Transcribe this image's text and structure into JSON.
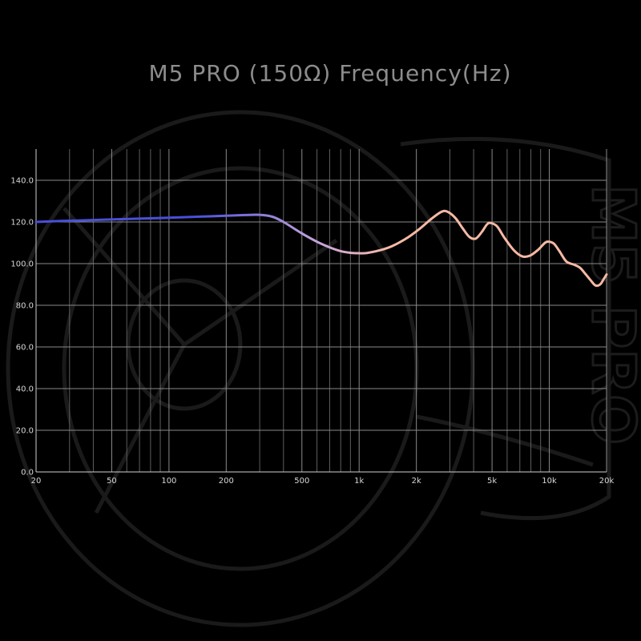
{
  "chart_data": {
    "type": "line",
    "title": "M5 PRO (150Ω) Frequency(Hz)",
    "x_scale": "log",
    "xlim": [
      20,
      20000
    ],
    "ylim": [
      0,
      155
    ],
    "x_ticks": [
      {
        "value": 20,
        "label": "20"
      },
      {
        "value": 50,
        "label": "50"
      },
      {
        "value": 100,
        "label": "100"
      },
      {
        "value": 200,
        "label": "200"
      },
      {
        "value": 500,
        "label": "500"
      },
      {
        "value": 1000,
        "label": "1k"
      },
      {
        "value": 2000,
        "label": "2k"
      },
      {
        "value": 5000,
        "label": "5k"
      },
      {
        "value": 10000,
        "label": "10k"
      },
      {
        "value": 20000,
        "label": "20k"
      }
    ],
    "y_ticks": [
      {
        "value": 0,
        "label": "0.0"
      },
      {
        "value": 20,
        "label": "20.0"
      },
      {
        "value": 40,
        "label": "40.0"
      },
      {
        "value": 60,
        "label": "60.0"
      },
      {
        "value": 80,
        "label": "80.0"
      },
      {
        "value": 100,
        "label": "100.0"
      },
      {
        "value": 120,
        "label": "120.0"
      },
      {
        "value": 140,
        "label": "140.0"
      }
    ],
    "grid": true,
    "series": [
      {
        "color_start": "#4a4fd8",
        "color_mid": "#c9a6dc",
        "color_end": "#f6b9a4",
        "points": [
          [
            20,
            120.0
          ],
          [
            30,
            120.6
          ],
          [
            50,
            121.2
          ],
          [
            100,
            122.0
          ],
          [
            150,
            122.6
          ],
          [
            200,
            123.0
          ],
          [
            250,
            123.3
          ],
          [
            300,
            123.4
          ],
          [
            350,
            122.5
          ],
          [
            400,
            120.0
          ],
          [
            500,
            114.5
          ],
          [
            600,
            110.5
          ],
          [
            700,
            107.8
          ],
          [
            800,
            106.0
          ],
          [
            900,
            105.2
          ],
          [
            1000,
            105.0
          ],
          [
            1100,
            105.1
          ],
          [
            1300,
            106.5
          ],
          [
            1500,
            108.5
          ],
          [
            1800,
            112.5
          ],
          [
            2100,
            117.0
          ],
          [
            2400,
            121.5
          ],
          [
            2700,
            124.8
          ],
          [
            2900,
            125.0
          ],
          [
            3200,
            122.0
          ],
          [
            3500,
            117.0
          ],
          [
            3800,
            112.8
          ],
          [
            4100,
            112.0
          ],
          [
            4400,
            115.0
          ],
          [
            4700,
            118.8
          ],
          [
            4900,
            119.5
          ],
          [
            5300,
            118.0
          ],
          [
            5800,
            112.5
          ],
          [
            6500,
            106.5
          ],
          [
            7200,
            103.5
          ],
          [
            7900,
            103.8
          ],
          [
            8700,
            106.5
          ],
          [
            9500,
            110.0
          ],
          [
            10000,
            110.5
          ],
          [
            10600,
            109.5
          ],
          [
            11300,
            106.0
          ],
          [
            12300,
            101.0
          ],
          [
            13500,
            99.5
          ],
          [
            14500,
            98.0
          ],
          [
            15500,
            95.0
          ],
          [
            16500,
            92.0
          ],
          [
            17500,
            89.5
          ],
          [
            18500,
            90.0
          ],
          [
            19300,
            92.5
          ],
          [
            20000,
            94.8
          ]
        ]
      }
    ]
  },
  "watermark": {
    "text": "M5 PRO"
  }
}
